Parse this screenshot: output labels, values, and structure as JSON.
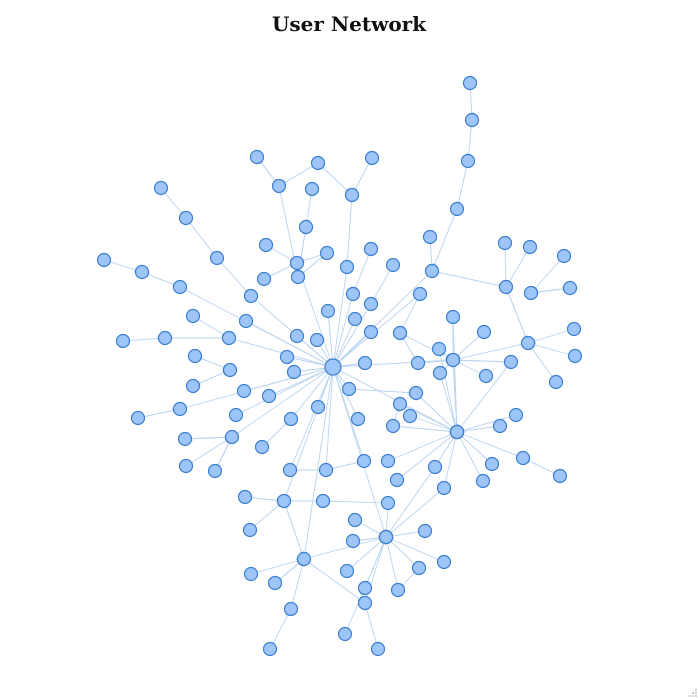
{
  "title": "User Network",
  "colors": {
    "node_fill": "#9ec5f7",
    "node_stroke": "#3b7fd1",
    "edge": "#b9d3ef"
  }
}
